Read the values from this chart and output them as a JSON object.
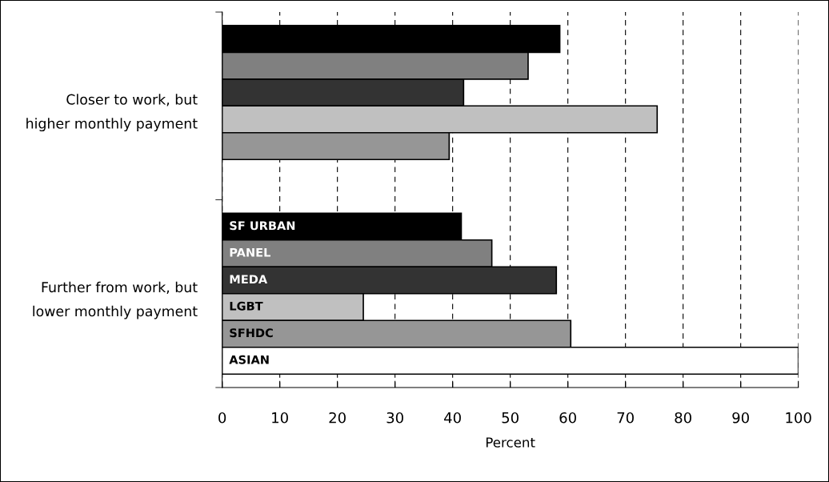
{
  "chart_data": {
    "type": "bar",
    "orientation": "horizontal",
    "xlabel": "Percent",
    "categories": [
      "Closer to work, but\nhigher monthly payment",
      "Further from work, but\nlower monthly payment"
    ],
    "series": [
      {
        "name": "SF URBAN",
        "color": "#000000",
        "values": [
          58.6,
          41.5
        ]
      },
      {
        "name": "PANEL",
        "color": "#808080",
        "values": [
          53.1,
          46.8
        ]
      },
      {
        "name": "MEDA",
        "color": "#333333",
        "values": [
          41.9,
          58.0
        ]
      },
      {
        "name": "LGBT",
        "color": "#c0c0c0",
        "values": [
          75.5,
          24.5
        ]
      },
      {
        "name": "SFHDC",
        "color": "#969696",
        "values": [
          39.4,
          60.5
        ]
      },
      {
        "name": "ASIAN",
        "color": "#ffffff",
        "values": [
          null,
          100
        ]
      }
    ],
    "xlim": [
      0,
      100
    ],
    "xticks": [
      0,
      10,
      20,
      30,
      40,
      50,
      60,
      70,
      80,
      90,
      100
    ],
    "grid": "x",
    "legend": false
  }
}
